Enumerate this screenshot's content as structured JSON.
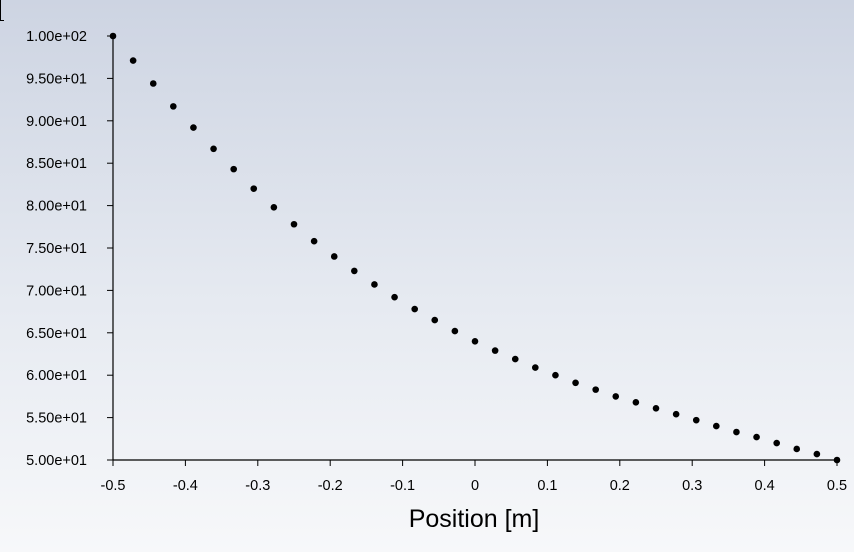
{
  "chart_data": {
    "type": "scatter",
    "title": "",
    "xlabel": "Position [m]",
    "ylabel": "",
    "xlim": [
      -0.5,
      0.5
    ],
    "ylim": [
      50,
      100
    ],
    "xticks": [
      -0.5,
      -0.4,
      -0.3,
      -0.2,
      -0.1,
      0,
      0.1,
      0.2,
      0.3,
      0.4,
      0.5
    ],
    "xtick_labels": [
      "-0.5",
      "-0.4",
      "-0.3",
      "-0.2",
      "-0.1",
      "0",
      "0.1",
      "0.2",
      "0.3",
      "0.4",
      "0.5"
    ],
    "yticks": [
      50,
      55,
      60,
      65,
      70,
      75,
      80,
      85,
      90,
      95,
      100
    ],
    "ytick_labels": [
      "5.00e+01",
      "5.50e+01",
      "6.00e+01",
      "6.50e+01",
      "7.00e+01",
      "7.50e+01",
      "8.00e+01",
      "8.50e+01",
      "9.00e+01",
      "9.50e+01",
      "1.00e+02"
    ],
    "grid": false,
    "marker_color": "#000000",
    "series": [
      {
        "x": [
          -0.5,
          -0.4722,
          -0.4444,
          -0.4167,
          -0.3889,
          -0.3611,
          -0.3333,
          -0.3056,
          -0.2778,
          -0.25,
          -0.2222,
          -0.1944,
          -0.1667,
          -0.1389,
          -0.1111,
          -0.0833,
          -0.0556,
          -0.0278,
          0,
          0.0278,
          0.0556,
          0.0833,
          0.1111,
          0.1389,
          0.1667,
          0.1944,
          0.2222,
          0.25,
          0.2778,
          0.3056,
          0.3333,
          0.3611,
          0.3889,
          0.4167,
          0.4444,
          0.4722,
          0.5
        ],
        "y": [
          100.0,
          97.1,
          94.4,
          91.7,
          89.2,
          86.7,
          84.3,
          82.0,
          79.8,
          77.8,
          75.8,
          74.0,
          72.3,
          70.7,
          69.2,
          67.8,
          66.5,
          65.2,
          64.0,
          62.9,
          61.9,
          60.9,
          60.0,
          59.1,
          58.3,
          57.5,
          56.8,
          56.1,
          55.4,
          54.7,
          54.0,
          53.3,
          52.7,
          52.0,
          51.3,
          50.7,
          50.0
        ]
      }
    ]
  }
}
